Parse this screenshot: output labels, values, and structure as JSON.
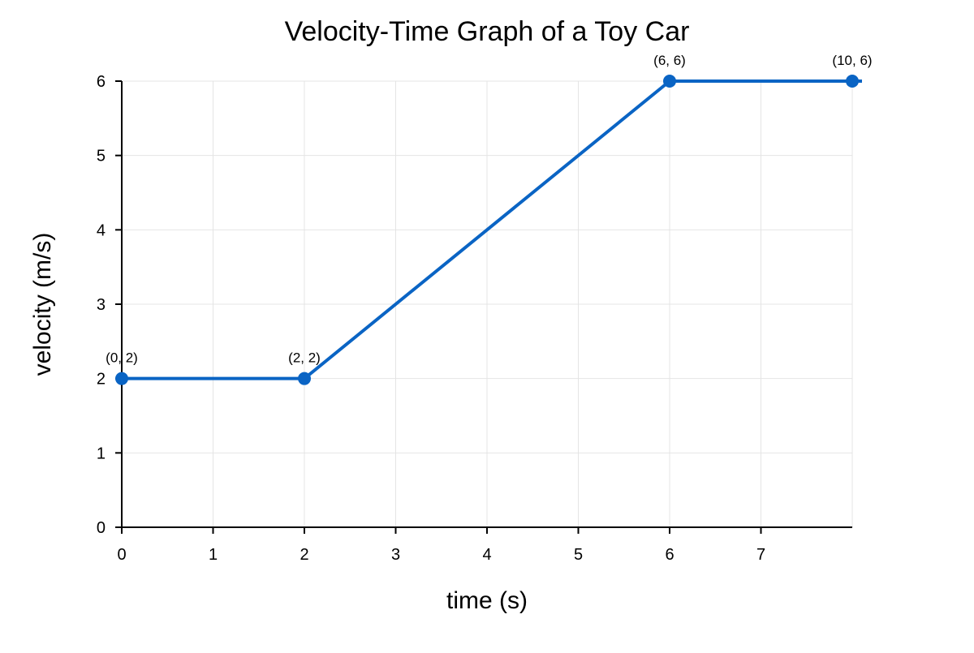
{
  "chart_data": {
    "type": "line",
    "title": "Velocity-Time Graph of a Toy Car",
    "xlabel": "time (s)",
    "ylabel": "velocity (m/s)",
    "xlim": [
      0,
      8
    ],
    "ylim": [
      0,
      6
    ],
    "x_ticks": [
      0,
      1,
      2,
      3,
      4,
      5,
      6,
      7
    ],
    "y_ticks": [
      0,
      1,
      2,
      3,
      4,
      5,
      6
    ],
    "grid": true,
    "series": [
      {
        "color": "#0a64c4",
        "points": [
          {
            "x": 0,
            "y": 2,
            "label": "(0, 2)"
          },
          {
            "x": 2,
            "y": 2,
            "label": "(2, 2)"
          },
          {
            "x": 6,
            "y": 6,
            "label": "(6, 6)"
          },
          {
            "x": 10,
            "y": 6,
            "label": "(10, 6)"
          }
        ]
      }
    ]
  }
}
